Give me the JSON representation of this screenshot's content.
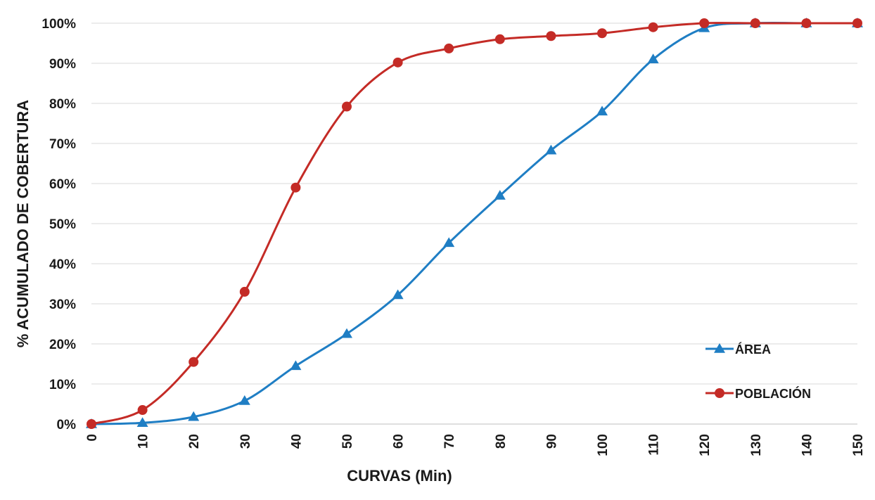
{
  "chart_data": {
    "type": "line",
    "title": "",
    "xlabel": "CURVAS  (Min)",
    "ylabel": "% ACUMULADO  DE COBERTURA",
    "x": [
      0,
      10,
      20,
      30,
      40,
      50,
      60,
      70,
      80,
      90,
      100,
      110,
      120,
      130,
      140,
      150
    ],
    "xlim": [
      0,
      150
    ],
    "ylim": [
      0,
      100
    ],
    "y_ticks": [
      0,
      10,
      20,
      30,
      40,
      50,
      60,
      70,
      80,
      90,
      100
    ],
    "y_tick_labels": [
      "0%",
      "10%",
      "20%",
      "30%",
      "40%",
      "50%",
      "60%",
      "70%",
      "80%",
      "90%",
      "100%"
    ],
    "x_tick_labels": [
      "0",
      "10",
      "20",
      "30",
      "40",
      "50",
      "60",
      "70",
      "80",
      "90",
      "100",
      "110",
      "120",
      "130",
      "140",
      "150"
    ],
    "grid": "horizontal",
    "legend_position": "bottom-right",
    "smooth": true,
    "series": [
      {
        "name": "ÁREA",
        "color": "#1f7ec4",
        "marker": "triangle",
        "values": [
          0,
          0.3,
          1.8,
          5.8,
          14.5,
          22.5,
          32.2,
          45.2,
          57.0,
          68.3,
          78.0,
          91.0,
          98.8,
          100,
          100,
          100
        ]
      },
      {
        "name": "POBLACIÓN",
        "color": "#c42b26",
        "marker": "circle",
        "values": [
          0,
          3.5,
          15.5,
          33.0,
          59.0,
          79.2,
          90.2,
          93.7,
          96.0,
          96.8,
          97.5,
          99.0,
          100,
          100,
          100,
          100
        ]
      }
    ]
  }
}
